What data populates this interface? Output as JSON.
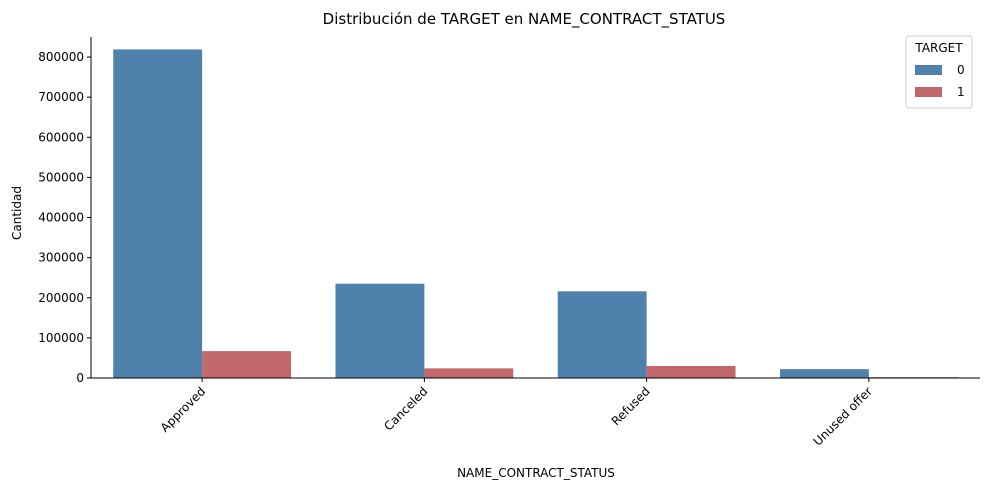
{
  "chart_data": {
    "type": "bar",
    "title": "Distribución de TARGET en NAME_CONTRACT_STATUS",
    "xlabel": "NAME_CONTRACT_STATUS",
    "ylabel": "Cantidad",
    "categories": [
      "Approved",
      "Canceled",
      "Refused",
      "Unused offer"
    ],
    "series": [
      {
        "name": "0",
        "color": "#4e81ab",
        "values": [
          819000,
          235000,
          216000,
          22000
        ]
      },
      {
        "name": "1",
        "color": "#c0686a",
        "values": [
          67000,
          24000,
          30000,
          2000
        ]
      }
    ],
    "ylim": [
      0,
      850000
    ],
    "yticks": [
      0,
      100000,
      200000,
      300000,
      400000,
      500000,
      600000,
      700000,
      800000
    ],
    "legend": {
      "title": "TARGET",
      "position": "top-right"
    },
    "grid": false
  }
}
